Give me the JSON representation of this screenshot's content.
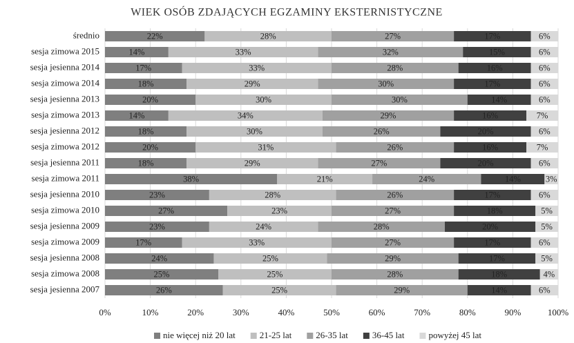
{
  "chart_data": {
    "type": "stacked_barh",
    "title": "WIEK OSÓB ZDAJĄCYCH EGZAMINY EKSTERNISTYCZNE",
    "categories": [
      "średnio",
      "sesja zimowa 2015",
      "sesja jesienna 2014",
      "sesja zimowa 2014",
      "sesja jesienna 2013",
      "sesja zimowa 2013",
      "sesja jesienna 2012",
      "sesja zimowa 2012",
      "sesja jesienna 2011",
      "sesja zimowa 2011",
      "sesja jesienna 2010",
      "sesja zimowa 2010",
      "sesja jesienna 2009",
      "sesja zimowa 2009",
      "sesja jesienna 2008",
      "sesja zimowa 2008",
      "sesja jesienna 2007"
    ],
    "series": [
      {
        "name": "nie więcej niż 20 lat",
        "color": "#7f7f7f",
        "values": [
          22,
          14,
          17,
          18,
          20,
          14,
          18,
          20,
          18,
          38,
          23,
          27,
          23,
          17,
          24,
          25,
          26
        ],
        "value_labels": [
          "22%",
          "14%",
          "17%",
          "18%",
          "20%",
          "14%",
          "18%",
          "20%",
          "18%",
          "38%",
          "23%",
          "27%",
          "23%",
          "17%",
          "24%",
          "25%",
          "26%"
        ]
      },
      {
        "name": "21-25 lat",
        "color": "#bfbfbf",
        "values": [
          28,
          33,
          33,
          29,
          30,
          34,
          30,
          31,
          29,
          21,
          28,
          23,
          24,
          33,
          25,
          25,
          25
        ],
        "value_labels": [
          "28%",
          "33%",
          "33%",
          "29%",
          "30%",
          "34%",
          "30%",
          "31%",
          "29%",
          "21%",
          "28%",
          "23%",
          "24%",
          "33%",
          "25%",
          "25%",
          "25%"
        ]
      },
      {
        "name": "26-35 lat",
        "color": "#a0a0a0",
        "values": [
          27,
          32,
          28,
          30,
          30,
          29,
          26,
          26,
          27,
          24,
          26,
          27,
          28,
          27,
          29,
          28,
          29
        ],
        "value_labels": [
          "27%",
          "32%",
          "28%",
          "30%",
          "30%",
          "29%",
          "26%",
          "26%",
          "27%",
          "24%",
          "26%",
          "27%",
          "28%",
          "27%",
          "29%",
          "28%",
          "29%"
        ]
      },
      {
        "name": "36-45 lat",
        "color": "#404040",
        "values": [
          17,
          15,
          16,
          17,
          14,
          16,
          20,
          16,
          20,
          14,
          17,
          18,
          20,
          17,
          17,
          18,
          14
        ],
        "value_labels": [
          "17%",
          "15%",
          "16%",
          "17%",
          "14%",
          "16%",
          "20%",
          "16%",
          "20%",
          "14%",
          "17%",
          "18%",
          "20%",
          "17%",
          "17%",
          "18%",
          "14%"
        ]
      },
      {
        "name": "powyżej 45 lat",
        "color": "#d9d9d9",
        "values": [
          6,
          6,
          6,
          6,
          6,
          7,
          6,
          7,
          6,
          3,
          6,
          5,
          5,
          6,
          5,
          4,
          6
        ],
        "value_labels": [
          "6%",
          "6%",
          "6%",
          "6%",
          "6%",
          "7%",
          "6%",
          "7%",
          "6%",
          "3%",
          "6%",
          "5%",
          "5%",
          "6%",
          "5%",
          "4%",
          "6%"
        ]
      }
    ],
    "xlim": [
      0,
      100
    ],
    "xticks": [
      {
        "value": 0,
        "label": "0%"
      },
      {
        "value": 10,
        "label": "10%"
      },
      {
        "value": 20,
        "label": "20%"
      },
      {
        "value": 30,
        "label": "30%"
      },
      {
        "value": 40,
        "label": "40%"
      },
      {
        "value": 50,
        "label": "50%"
      },
      {
        "value": 60,
        "label": "60%"
      },
      {
        "value": 70,
        "label": "70%"
      },
      {
        "value": 80,
        "label": "80%"
      },
      {
        "value": 90,
        "label": "90%"
      },
      {
        "value": 100,
        "label": "100%"
      }
    ],
    "grid": true,
    "legend": "bottom"
  }
}
